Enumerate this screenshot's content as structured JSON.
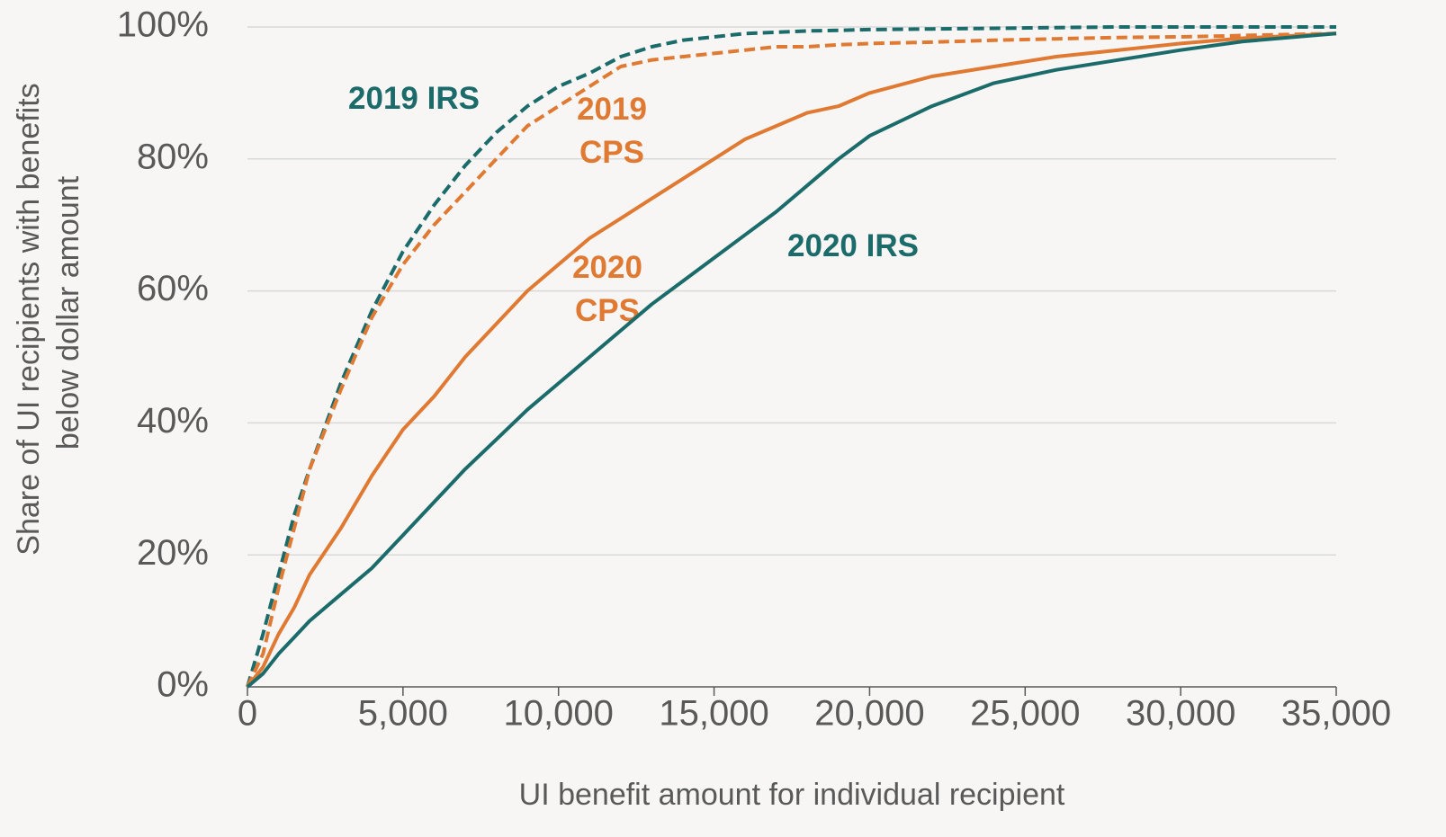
{
  "chart_data": {
    "type": "line",
    "xlabel": "UI benefit amount for individual recipient",
    "ylabel": [
      "Share of UI recipients with benefits",
      "below dollar amount"
    ],
    "x": [
      0,
      500,
      1000,
      1500,
      2000,
      3000,
      4000,
      5000,
      6000,
      7000,
      8000,
      9000,
      10000,
      11000,
      12000,
      13000,
      14000,
      15000,
      16000,
      17000,
      18000,
      19000,
      20000,
      22000,
      24000,
      26000,
      28000,
      30000,
      32000,
      35000
    ],
    "series": [
      {
        "name": "2019 IRS",
        "color": "#1b6b6b",
        "dashed": true,
        "values": [
          0,
          8,
          17,
          26,
          33,
          46,
          57,
          66,
          73,
          79,
          84,
          88,
          91,
          93,
          95.5,
          97,
          98,
          98.5,
          99,
          99.2,
          99.4,
          99.5,
          99.6,
          99.7,
          99.8,
          99.9,
          100,
          100,
          100,
          100
        ]
      },
      {
        "name": "2019 CPS",
        "color": "#e07a33",
        "dashed": true,
        "values": [
          0,
          5,
          15,
          24,
          33,
          45,
          56,
          64,
          70,
          75,
          80,
          85,
          88,
          91,
          94,
          95,
          95.5,
          96,
          96.5,
          97,
          97,
          97.3,
          97.5,
          97.7,
          98,
          98.2,
          98.4,
          98.5,
          98.7,
          99
        ]
      },
      {
        "name": "2020 CPS",
        "color": "#e07a33",
        "dashed": false,
        "values": [
          0,
          3,
          8,
          12,
          17,
          24,
          32,
          39,
          44,
          50,
          55,
          60,
          64,
          68,
          71,
          74,
          77,
          80,
          83,
          85,
          87,
          88,
          90,
          92.5,
          94,
          95.5,
          96.5,
          97.5,
          98.3,
          99
        ]
      },
      {
        "name": "2020 IRS",
        "color": "#1b6b6b",
        "dashed": false,
        "values": [
          0,
          2,
          5,
          7.5,
          10,
          14,
          18,
          23,
          28,
          33,
          37.5,
          42,
          46,
          50,
          54,
          58,
          61.5,
          65,
          68.5,
          72,
          76,
          80,
          83.5,
          88,
          91.5,
          93.5,
          95,
          96.5,
          97.8,
          99
        ]
      }
    ],
    "xlim": [
      0,
      35000
    ],
    "xticks": [
      0,
      {
        "value": 5000,
        "label": "5,000"
      },
      {
        "value": 10000,
        "label": "10,000"
      },
      {
        "value": 15000,
        "label": "15,000"
      },
      {
        "value": 20000,
        "label": "20,000"
      },
      {
        "value": 25000,
        "label": "25,000"
      },
      {
        "value": 30000,
        "label": "30,000"
      },
      {
        "value": 35000,
        "label": "35,000"
      }
    ],
    "ylim": [
      0,
      100
    ],
    "yticks": [
      {
        "value": 0,
        "label": "0%"
      },
      {
        "value": 20,
        "label": "20%"
      },
      {
        "value": 40,
        "label": "40%"
      },
      {
        "value": 60,
        "label": "60%"
      },
      {
        "value": 80,
        "label": "80%"
      },
      {
        "value": 100,
        "label": "100%"
      }
    ],
    "grid": true
  }
}
